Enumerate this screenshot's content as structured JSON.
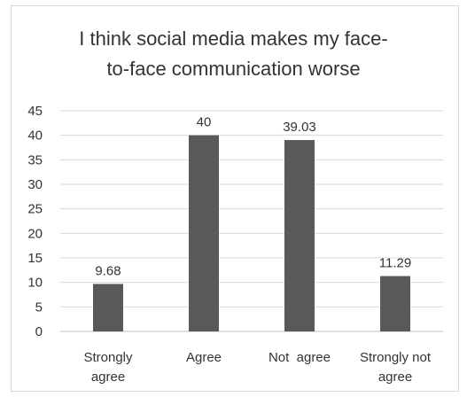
{
  "chart_data": {
    "type": "bar",
    "title_lines": [
      "I think social media makes my face-",
      "to-face communication worse"
    ],
    "categories": [
      {
        "lines": [
          "Strongly",
          "agree"
        ]
      },
      {
        "lines": [
          "Agree"
        ]
      },
      {
        "lines": [
          "Not  agree"
        ]
      },
      {
        "lines": [
          "Strongly not",
          "agree"
        ]
      }
    ],
    "values": [
      9.68,
      40,
      39.03,
      11.29
    ],
    "data_labels": [
      "9.68",
      "40",
      "39.03",
      "11.29"
    ],
    "y_ticks": [
      "0",
      "5",
      "10",
      "15",
      "20",
      "25",
      "30",
      "35",
      "40",
      "45"
    ],
    "ylim": [
      0,
      45
    ],
    "grid": true,
    "bar_color": "#595959",
    "grid_color": "#d9d9d9"
  }
}
